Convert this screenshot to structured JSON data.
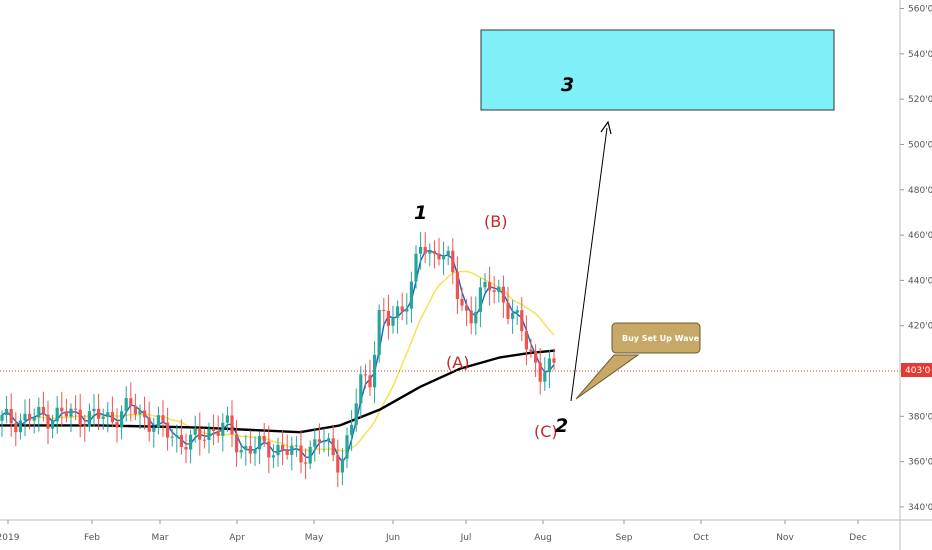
{
  "chart_data": {
    "type": "candlestick",
    "x_axis_labels": [
      "2019",
      "Feb",
      "Mar",
      "Apr",
      "May",
      "Jun",
      "Jul",
      "Aug",
      "Sep",
      "Oct",
      "Nov",
      "Dec"
    ],
    "y_axis_labels": [
      "340'0",
      "360'0",
      "380'0",
      "400'0",
      "420'0",
      "440'0",
      "460'0",
      "480'0",
      "500'0",
      "520'0",
      "540'0",
      "560'0"
    ],
    "ylim": [
      336,
      562
    ],
    "current_price": {
      "value": 403,
      "label": "403'0"
    },
    "annotations": {
      "wave1": "1",
      "waveB": "(B)",
      "waveA": "(A)",
      "waveC": "(C)",
      "wave2": "2",
      "wave3": "3",
      "callout": "Buy Set Up Wave 3"
    },
    "target_box_range": [
      514,
      548
    ],
    "colors": {
      "up": "#26a69a",
      "down": "#ef5350",
      "ema_fast": "#1565c0",
      "ma_mid": "#f5e04a",
      "ma_slow": "#000000",
      "box_fill": "#7ff0f7",
      "callout_fill": "#c8a866",
      "price_line": "#e53935"
    },
    "series": [
      {
        "name": "",
        "type": "candles"
      },
      {
        "name": "",
        "type": "ma_fast"
      },
      {
        "name": "",
        "type": "ma_mid"
      },
      {
        "name": "",
        "type": "ma_slow"
      }
    ]
  }
}
